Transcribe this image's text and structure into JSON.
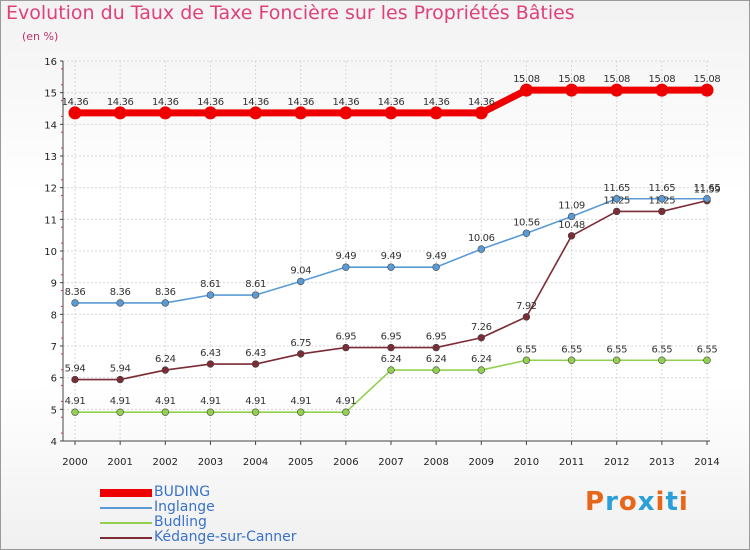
{
  "header": {
    "title": "Evolution du Taux de Taxe Foncière sur les Propriétés Bâties",
    "subtitle": "(en %)"
  },
  "logo": {
    "text": "Proxiti",
    "colors": [
      "#e8661a",
      "#2a9fd8",
      "#e8661a",
      "#2a9fd8",
      "#e8661a",
      "#2a9fd8",
      "#e8661a"
    ]
  },
  "chart_data": {
    "type": "line",
    "x": [
      2000,
      2001,
      2002,
      2003,
      2004,
      2005,
      2006,
      2007,
      2008,
      2009,
      2010,
      2011,
      2012,
      2013,
      2014
    ],
    "ylim": [
      4,
      16
    ],
    "yticks": [
      4,
      5,
      6,
      7,
      8,
      9,
      10,
      11,
      12,
      13,
      14,
      15,
      16
    ],
    "grid": true,
    "legend_position": "bottom-left",
    "series": [
      {
        "name": "BUDING",
        "color": "#ee0000",
        "values": [
          14.36,
          14.36,
          14.36,
          14.36,
          14.36,
          14.36,
          14.36,
          14.36,
          14.36,
          14.36,
          15.08,
          15.08,
          15.08,
          15.08,
          15.08
        ],
        "labels": [
          "14.36",
          "14.36",
          "14.36",
          "14.36",
          "14.36",
          "14.36",
          "14.36",
          "14.36",
          "14.36",
          "14.36",
          "15.08",
          "15.08",
          "15.08",
          "15.08",
          "15.08"
        ]
      },
      {
        "name": "Inglange",
        "color": "#5b9bd5",
        "values": [
          8.36,
          8.36,
          8.36,
          8.61,
          8.61,
          9.04,
          9.49,
          9.49,
          9.49,
          10.06,
          10.56,
          11.09,
          11.65,
          11.65,
          11.65
        ],
        "labels": [
          "8.36",
          "8.36",
          "8.36",
          "8.61",
          "8.61",
          "9.04",
          "9.49",
          "9.49",
          "9.49",
          "10.06",
          "10.56",
          "11.09",
          "11.65",
          "11.65",
          "11.65"
        ]
      },
      {
        "name": "Budling",
        "color": "#92d050",
        "values": [
          4.91,
          4.91,
          4.91,
          4.91,
          4.91,
          4.91,
          4.91,
          6.24,
          6.24,
          6.24,
          6.55,
          6.55,
          6.55,
          6.55,
          6.55
        ],
        "labels": [
          "4.91",
          "4.91",
          "4.91",
          "4.91",
          "4.91",
          "4.91",
          "4.91",
          "6.24",
          "6.24",
          "6.24",
          "6.55",
          "6.55",
          "6.55",
          "6.55",
          "6.55"
        ]
      },
      {
        "name": "Kédange-sur-Canner",
        "color": "#7b2c36",
        "values": [
          5.94,
          5.94,
          6.24,
          6.43,
          6.43,
          6.75,
          6.95,
          6.95,
          6.95,
          7.26,
          7.92,
          10.48,
          11.25,
          11.25,
          11.59
        ],
        "labels": [
          "5.94",
          "5.94",
          "6.24",
          "6.43",
          "6.43",
          "6.75",
          "6.95",
          "6.95",
          "6.95",
          "7.26",
          "7.92",
          "10.48",
          "11.25",
          "11.25",
          "11.59"
        ]
      }
    ]
  }
}
